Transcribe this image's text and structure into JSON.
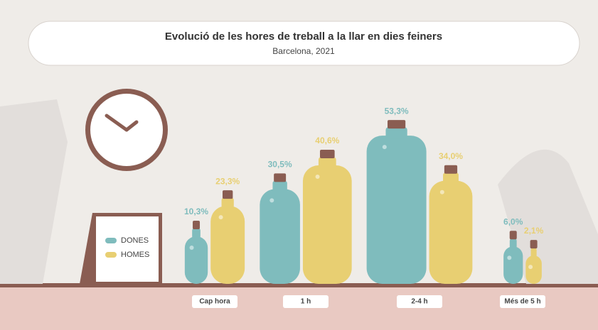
{
  "chart_data": {
    "type": "bottle-bar",
    "title": "Evolució de les hores de treball a la llar en dies feiners",
    "subtitle": "Barcelona, 2021",
    "categories": [
      "Cap hora",
      "1 h",
      "2-4 h",
      "Més de 5 h"
    ],
    "series": [
      {
        "name": "DONES",
        "color": "#7fbcbd",
        "values": [
          10.3,
          30.5,
          53.3,
          6.0
        ],
        "value_labels": [
          "10,3%",
          "30,5%",
          "53,3%",
          "6,0%"
        ]
      },
      {
        "name": "HOMES",
        "color": "#e8cf72",
        "values": [
          23.3,
          40.6,
          34.0,
          2.1
        ],
        "value_labels": [
          "23,3%",
          "40,6%",
          "34,0%",
          "2,1%"
        ]
      }
    ]
  }
}
